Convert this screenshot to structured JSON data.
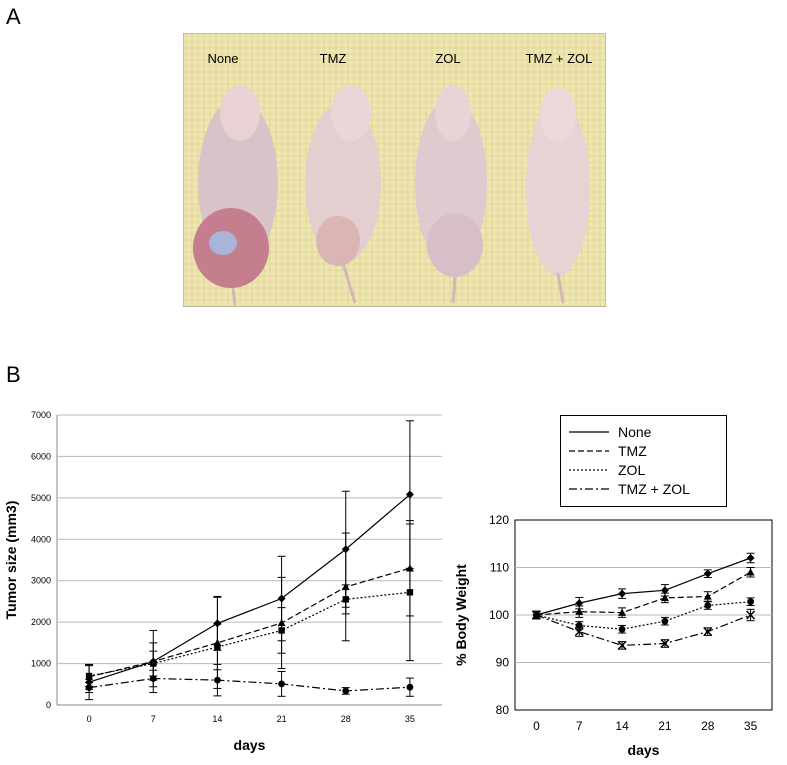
{
  "panel_a": {
    "letter": "A",
    "labels": [
      "None",
      "TMZ",
      "ZOL",
      "TMZ + ZOL"
    ],
    "photo_description_icon": "mouse-photo"
  },
  "panel_b": {
    "letter": "B"
  },
  "legend": {
    "entries": [
      {
        "name": "None",
        "dash": "solid"
      },
      {
        "name": "TMZ",
        "dash": "dashed"
      },
      {
        "name": "ZOL",
        "dash": "dotted"
      },
      {
        "name": "TMZ + ZOL",
        "dash": "dashdot"
      }
    ]
  },
  "chart_data": [
    {
      "type": "line",
      "title": "",
      "xlabel": "days",
      "ylabel": "Tumor size (mm3)",
      "x": [
        0,
        7,
        14,
        21,
        28,
        35
      ],
      "ylim": [
        0,
        7000
      ],
      "yticks": [
        0,
        1000,
        2000,
        3000,
        4000,
        5000,
        6000,
        7000
      ],
      "grid": true,
      "series": [
        {
          "name": "None",
          "marker": "diamond",
          "values": [
            550,
            1050,
            1970,
            2570,
            3760,
            5080
          ],
          "errors": [
            420,
            750,
            650,
            1020,
            1400,
            1780
          ]
        },
        {
          "name": "TMZ",
          "marker": "triangle",
          "values": [
            680,
            1050,
            1500,
            1980,
            2850,
            3300
          ],
          "errors": [
            300,
            450,
            1100,
            1100,
            1300,
            1150
          ]
        },
        {
          "name": "ZOL",
          "marker": "square",
          "values": [
            700,
            1000,
            1400,
            1800,
            2550,
            2720
          ],
          "errors": [
            250,
            300,
            550,
            550,
            350,
            1650
          ]
        },
        {
          "name": "TMZ + ZOL",
          "marker": "circle",
          "values": [
            420,
            640,
            600,
            510,
            340,
            430
          ],
          "errors": [
            120,
            200,
            380,
            300,
            80,
            220
          ]
        }
      ]
    },
    {
      "type": "line",
      "title": "",
      "xlabel": "days",
      "ylabel": "% Body Weight",
      "x": [
        0,
        7,
        14,
        21,
        28,
        35
      ],
      "ylim": [
        80,
        120
      ],
      "yticks": [
        80,
        90,
        100,
        110,
        120
      ],
      "grid": true,
      "series": [
        {
          "name": "None",
          "marker": "diamond",
          "values": [
            100,
            102.5,
            104.5,
            105.2,
            108.7,
            112
          ],
          "errors": [
            0.8,
            1.2,
            1.0,
            1.2,
            0.8,
            1.0
          ]
        },
        {
          "name": "TMZ",
          "marker": "triangle",
          "values": [
            100,
            100.7,
            100.5,
            103.6,
            103.9,
            109
          ],
          "errors": [
            0.8,
            1.2,
            1.0,
            1.0,
            1.0,
            1.0
          ]
        },
        {
          "name": "ZOL",
          "marker": "circle",
          "values": [
            100,
            97.8,
            97,
            98.7,
            102,
            102.8
          ],
          "errors": [
            0.8,
            0.8,
            0.8,
            0.8,
            0.8,
            0.8
          ]
        },
        {
          "name": "TMZ + ZOL",
          "marker": "x",
          "values": [
            100,
            96.5,
            93.6,
            94,
            96.5,
            100
          ],
          "errors": [
            0.8,
            1.0,
            0.8,
            0.8,
            0.8,
            1.2
          ]
        }
      ]
    }
  ]
}
